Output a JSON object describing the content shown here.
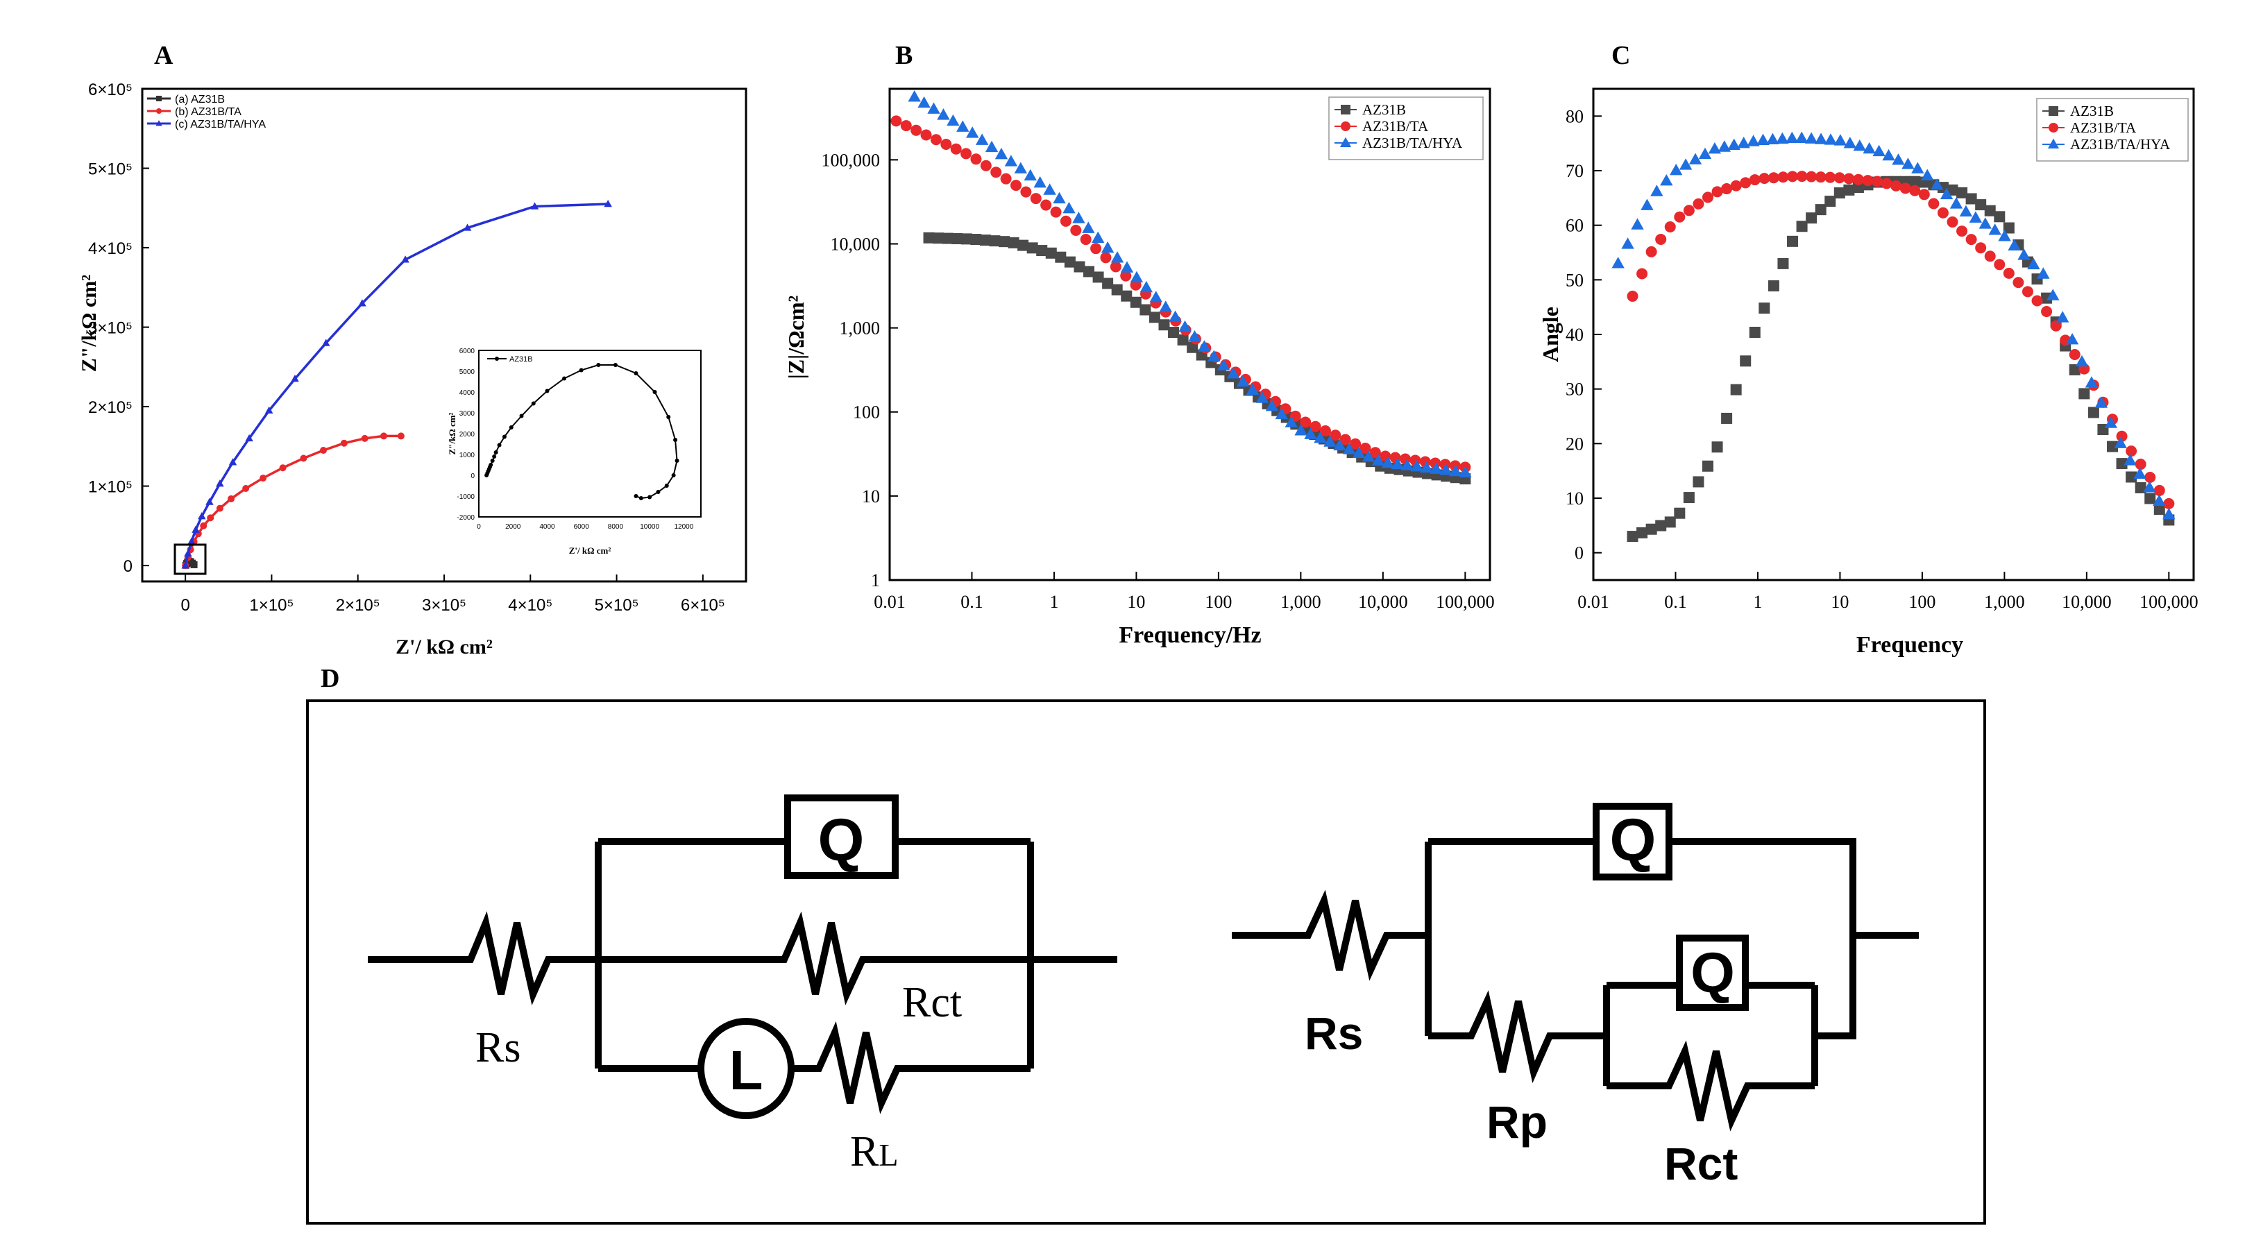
{
  "panels": {
    "A": "A",
    "B": "B",
    "C": "C",
    "D": "D"
  },
  "chart_data": [
    {
      "type": "line",
      "panel": "A",
      "xlabel": "Z'/ kΩ cm²",
      "ylabel": "Z\"/kΩ cm²",
      "xlim": [
        -50000,
        650000
      ],
      "ylim": [
        -20000,
        600000
      ],
      "xticks": [
        "0",
        "1×10⁵",
        "2×10⁵",
        "3×10⁵",
        "4×10⁵",
        "5×10⁵",
        "6×10⁵"
      ],
      "yticks": [
        "0",
        "1×10⁵",
        "2×10⁵",
        "3×10⁵",
        "4×10⁵",
        "5×10⁵",
        "6×10⁵"
      ],
      "legend_position": "top-left",
      "series": [
        {
          "name": "(a) AZ31B",
          "color": "#303030",
          "marker": "square",
          "x": [
            500,
            1500,
            2500,
            4000,
            6000,
            8000,
            10000
          ],
          "y": [
            300,
            2500,
            4500,
            5500,
            5000,
            3000,
            1000
          ]
        },
        {
          "name": "(b) AZ31B/TA",
          "color": "#e8282b",
          "marker": "circle",
          "x": [
            0,
            3000,
            6000,
            10000,
            15000,
            21000,
            29000,
            40000,
            53000,
            70000,
            90000,
            113000,
            137000,
            160000,
            184000,
            208000,
            230000,
            250000
          ],
          "y": [
            0,
            10000,
            20000,
            30000,
            40000,
            50000,
            60000,
            72000,
            84000,
            97000,
            110000,
            123000,
            135000,
            145000,
            154000,
            160000,
            163000,
            163000
          ]
        },
        {
          "name": "(c) AZ31B/TA/HYA",
          "color": "#2530d6",
          "marker": "triangle",
          "x": [
            0,
            3000,
            7000,
            12000,
            19000,
            28000,
            40000,
            55000,
            74000,
            97000,
            127000,
            163000,
            205000,
            255000,
            327000,
            405000,
            490000
          ],
          "y": [
            0,
            15000,
            30000,
            45000,
            62000,
            80000,
            103000,
            130000,
            160000,
            195000,
            235000,
            280000,
            330000,
            385000,
            425000,
            452000,
            455000
          ]
        }
      ],
      "inset": {
        "legend": "AZ31B",
        "xlabel": "Z'/ kΩ cm²",
        "ylabel": "Z\"/kΩ cm²",
        "xlim": [
          0,
          13000
        ],
        "ylim": [
          -2000,
          6000
        ],
        "xticks": [
          "0",
          "2000",
          "4000",
          "6000",
          "8000",
          "10000",
          "12000"
        ],
        "yticks": [
          "-2000",
          "-1000",
          "0",
          "1000",
          "2000",
          "3000",
          "4000",
          "5000",
          "6000"
        ],
        "x": [
          450,
          500,
          550,
          600,
          650,
          700,
          800,
          900,
          1000,
          1200,
          1500,
          1900,
          2500,
          3200,
          4000,
          5000,
          6000,
          7000,
          8000,
          9200,
          10300,
          11100,
          11500,
          11600,
          11400,
          11000,
          10500,
          10000,
          9500,
          9200
        ],
        "y": [
          0,
          100,
          200,
          300,
          400,
          500,
          700,
          900,
          1100,
          1450,
          1850,
          2300,
          2850,
          3450,
          4050,
          4650,
          5050,
          5300,
          5300,
          4900,
          4000,
          2800,
          1700,
          700,
          0,
          -500,
          -800,
          -1050,
          -1100,
          -1000
        ]
      }
    },
    {
      "type": "scatter",
      "panel": "B",
      "xlabel": "Frequency/Hz",
      "ylabel": "|Z|/Ωcm²",
      "xscale": "log",
      "yscale": "log",
      "xlim": [
        0.01,
        200000
      ],
      "ylim": [
        1,
        700000
      ],
      "xticks": [
        "0.01",
        "0.1",
        "1",
        "10",
        "100",
        "1,000",
        "10,000",
        "100,000"
      ],
      "yticks": [
        "1",
        "10",
        "100",
        "1,000",
        "10,000",
        "100,000"
      ],
      "legend_position": "top-right",
      "series": [
        {
          "name": "AZ31B",
          "color": "#4a4a4a",
          "marker": "square",
          "xrange": [
            0.03,
            100000
          ],
          "points": [
            [
              0.03,
              11800
            ],
            [
              0.1,
              11400
            ],
            [
              0.3,
              10500
            ],
            [
              1,
              7600
            ],
            [
              3,
              4400
            ],
            [
              10,
              2000
            ],
            [
              100,
              330
            ],
            [
              1000,
              65
            ],
            [
              10000,
              22
            ],
            [
              100000,
              16
            ]
          ]
        },
        {
          "name": "AZ31B/TA",
          "color": "#e8282b",
          "marker": "circle",
          "xrange": [
            0.012,
            100000
          ],
          "points": [
            [
              0.012,
              290000
            ],
            [
              0.1,
              110000
            ],
            [
              1,
              25000
            ],
            [
              10,
              3200
            ],
            [
              100,
              420
            ],
            [
              1000,
              80
            ],
            [
              10000,
              30
            ],
            [
              100000,
              22
            ]
          ]
        },
        {
          "name": "AZ31B/TA/HYA",
          "color": "#1f6fe0",
          "marker": "triangle",
          "xrange": [
            0.02,
            100000
          ],
          "points": [
            [
              0.02,
              560000
            ],
            [
              0.1,
              210000
            ],
            [
              1,
              40000
            ],
            [
              10,
              4000
            ],
            [
              100,
              400
            ],
            [
              1000,
              60
            ],
            [
              10000,
              25
            ],
            [
              100000,
              19
            ]
          ]
        }
      ]
    },
    {
      "type": "scatter",
      "panel": "C",
      "xlabel": "Frequency",
      "ylabel": "Angle",
      "xscale": "log",
      "xlim": [
        0.01,
        200000
      ],
      "ylim": [
        -5,
        85
      ],
      "xticks": [
        "0.01",
        "0.1",
        "1",
        "10",
        "100",
        "1,000",
        "10,000",
        "100,000"
      ],
      "yticks": [
        "0",
        "10",
        "20",
        "30",
        "40",
        "50",
        "60",
        "70",
        "80"
      ],
      "legend_position": "top-right",
      "series": [
        {
          "name": "AZ31B",
          "color": "#4a4a4a",
          "marker": "square",
          "xrange": [
            0.03,
            100000
          ],
          "points": [
            [
              0.03,
              3
            ],
            [
              0.1,
              6
            ],
            [
              0.3,
              18
            ],
            [
              1,
              42
            ],
            [
              3,
              59
            ],
            [
              10,
              66
            ],
            [
              30,
              68
            ],
            [
              100,
              68
            ],
            [
              300,
              66
            ],
            [
              1000,
              61
            ],
            [
              3000,
              48
            ],
            [
              10000,
              28
            ],
            [
              30000,
              15
            ],
            [
              100000,
              6
            ]
          ]
        },
        {
          "name": "AZ31B/TA",
          "color": "#e8282b",
          "marker": "circle",
          "xrange": [
            0.03,
            100000
          ],
          "points": [
            [
              0.03,
              47
            ],
            [
              0.05,
              55
            ],
            [
              0.1,
              61
            ],
            [
              0.3,
              66
            ],
            [
              1,
              68.5
            ],
            [
              3,
              69
            ],
            [
              10,
              68.7
            ],
            [
              30,
              68
            ],
            [
              100,
              66
            ],
            [
              300,
              59
            ],
            [
              1000,
              52
            ],
            [
              3000,
              45
            ],
            [
              10000,
              33
            ],
            [
              30000,
              20
            ],
            [
              100000,
              9
            ]
          ]
        },
        {
          "name": "AZ31B/TA/HYA",
          "color": "#1f6fe0",
          "marker": "triangle",
          "xrange": [
            0.02,
            100000
          ],
          "points": [
            [
              0.02,
              53
            ],
            [
              0.05,
              65
            ],
            [
              0.1,
              70
            ],
            [
              0.3,
              74
            ],
            [
              1,
              75.5
            ],
            [
              3,
              76
            ],
            [
              10,
              75.5
            ],
            [
              30,
              73.5
            ],
            [
              100,
              70
            ],
            [
              300,
              63
            ],
            [
              1000,
              58
            ],
            [
              3000,
              51
            ],
            [
              10000,
              33
            ],
            [
              30000,
              18
            ],
            [
              100000,
              7
            ]
          ]
        }
      ]
    }
  ],
  "circuits": {
    "left": {
      "Q": "Q",
      "L": "L",
      "Rs": "Rs",
      "Rct": "Rct",
      "RL_main": "R",
      "RL_sub": "L"
    },
    "right": {
      "Q1": "Q",
      "Q2": "Q",
      "Rs": "Rs",
      "Rp": "Rp",
      "Rct": "Rct"
    }
  }
}
